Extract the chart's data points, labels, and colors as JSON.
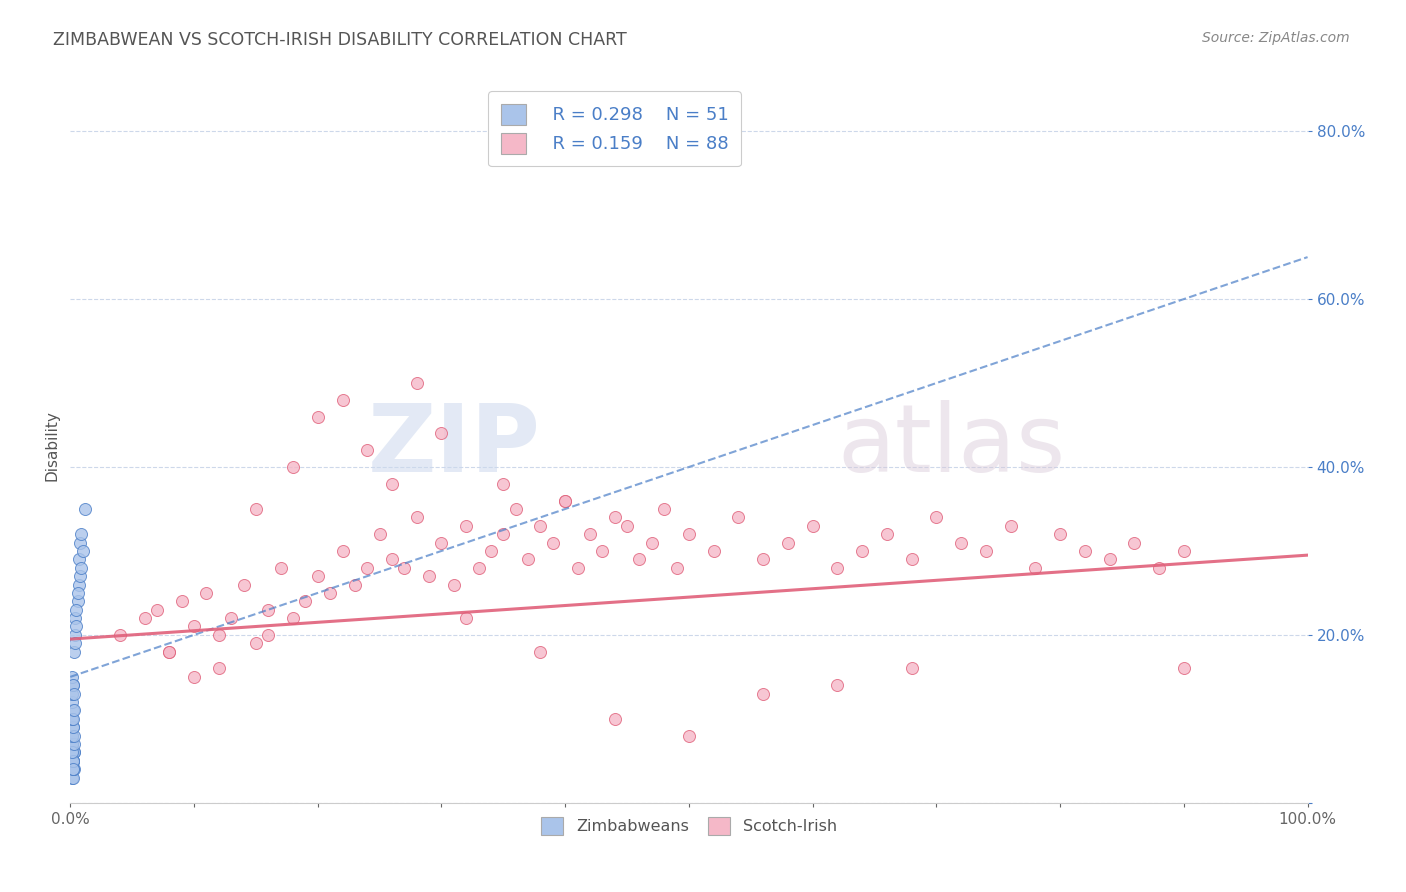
{
  "title": "ZIMBABWEAN VS SCOTCH-IRISH DISABILITY CORRELATION CHART",
  "source_text": "Source: ZipAtlas.com",
  "ylabel": "Disability",
  "xlim": [
    0,
    1.0
  ],
  "ylim": [
    0.0,
    0.85
  ],
  "ytick_positions": [
    0.0,
    0.2,
    0.4,
    0.6,
    0.8
  ],
  "yticklabels": [
    "",
    "20.0%",
    "40.0%",
    "60.0%",
    "80.0%"
  ],
  "legend_r1": "R = 0.298",
  "legend_n1": "N = 51",
  "legend_r2": "R = 0.159",
  "legend_n2": "N = 88",
  "blue_color": "#aac4ea",
  "pink_color": "#f5b8c8",
  "blue_line_color": "#4a7ec7",
  "pink_line_color": "#e0607a",
  "watermark_1": "ZIP",
  "watermark_2": "atlas",
  "background_color": "#ffffff",
  "grid_color": "#c8d4e8",
  "title_color": "#555555",
  "axis_label_color": "#555555",
  "tick_label_color_right": "#4a7ec7",
  "zimbabwean_x": [
    0.001,
    0.002,
    0.001,
    0.003,
    0.001,
    0.002,
    0.002,
    0.001,
    0.003,
    0.002,
    0.001,
    0.002,
    0.001,
    0.002,
    0.003,
    0.001,
    0.002,
    0.001,
    0.002,
    0.003,
    0.001,
    0.002,
    0.001,
    0.003,
    0.002,
    0.001,
    0.002,
    0.001,
    0.002,
    0.003,
    0.001,
    0.002,
    0.001,
    0.002,
    0.003,
    0.004,
    0.004,
    0.003,
    0.005,
    0.004,
    0.006,
    0.005,
    0.007,
    0.006,
    0.008,
    0.007,
    0.009,
    0.008,
    0.01,
    0.009,
    0.012
  ],
  "zimbabwean_y": [
    0.04,
    0.05,
    0.03,
    0.06,
    0.04,
    0.05,
    0.03,
    0.07,
    0.04,
    0.06,
    0.05,
    0.04,
    0.08,
    0.05,
    0.06,
    0.07,
    0.05,
    0.06,
    0.04,
    0.07,
    0.08,
    0.09,
    0.1,
    0.08,
    0.09,
    0.1,
    0.11,
    0.12,
    0.1,
    0.11,
    0.13,
    0.14,
    0.15,
    0.14,
    0.13,
    0.2,
    0.22,
    0.18,
    0.21,
    0.19,
    0.24,
    0.23,
    0.26,
    0.25,
    0.27,
    0.29,
    0.28,
    0.31,
    0.3,
    0.32,
    0.35
  ],
  "scotchirish_x": [
    0.04,
    0.06,
    0.07,
    0.08,
    0.09,
    0.1,
    0.11,
    0.12,
    0.13,
    0.14,
    0.15,
    0.16,
    0.17,
    0.18,
    0.19,
    0.2,
    0.21,
    0.22,
    0.23,
    0.24,
    0.25,
    0.26,
    0.27,
    0.28,
    0.29,
    0.3,
    0.31,
    0.32,
    0.33,
    0.34,
    0.35,
    0.36,
    0.37,
    0.38,
    0.39,
    0.4,
    0.41,
    0.42,
    0.43,
    0.44,
    0.45,
    0.46,
    0.47,
    0.48,
    0.49,
    0.5,
    0.52,
    0.54,
    0.56,
    0.58,
    0.6,
    0.62,
    0.64,
    0.66,
    0.68,
    0.7,
    0.72,
    0.74,
    0.76,
    0.78,
    0.8,
    0.82,
    0.84,
    0.86,
    0.88,
    0.9,
    0.22,
    0.28,
    0.35,
    0.4,
    0.18,
    0.24,
    0.3,
    0.2,
    0.15,
    0.1,
    0.08,
    0.12,
    0.16,
    0.26,
    0.32,
    0.38,
    0.44,
    0.5,
    0.56,
    0.62,
    0.68,
    0.9
  ],
  "scotchirish_y": [
    0.2,
    0.22,
    0.23,
    0.18,
    0.24,
    0.21,
    0.25,
    0.2,
    0.22,
    0.26,
    0.19,
    0.23,
    0.28,
    0.22,
    0.24,
    0.27,
    0.25,
    0.3,
    0.26,
    0.28,
    0.32,
    0.29,
    0.28,
    0.34,
    0.27,
    0.31,
    0.26,
    0.33,
    0.28,
    0.3,
    0.32,
    0.35,
    0.29,
    0.33,
    0.31,
    0.36,
    0.28,
    0.32,
    0.3,
    0.34,
    0.33,
    0.29,
    0.31,
    0.35,
    0.28,
    0.32,
    0.3,
    0.34,
    0.29,
    0.31,
    0.33,
    0.28,
    0.3,
    0.32,
    0.29,
    0.34,
    0.31,
    0.3,
    0.33,
    0.28,
    0.32,
    0.3,
    0.29,
    0.31,
    0.28,
    0.3,
    0.48,
    0.5,
    0.38,
    0.36,
    0.4,
    0.42,
    0.44,
    0.46,
    0.35,
    0.15,
    0.18,
    0.16,
    0.2,
    0.38,
    0.22,
    0.18,
    0.1,
    0.08,
    0.13,
    0.14,
    0.16,
    0.16
  ],
  "zim_trend_x": [
    0.0,
    1.0
  ],
  "zim_trend_y": [
    0.15,
    0.65
  ],
  "scotch_trend_x": [
    0.0,
    1.0
  ],
  "scotch_trend_y": [
    0.195,
    0.295
  ]
}
